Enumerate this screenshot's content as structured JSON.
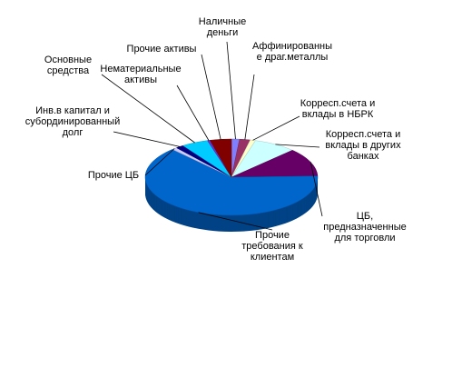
{
  "chart_data": {
    "type": "pie3d",
    "categories": [
      "Наличные деньги",
      "Аффинированные драг.металлы",
      "Корресп.счета и вклады в НБРК",
      "Корресп.счета и вклады в других банках",
      "ЦБ, предназначенные для торговли",
      "Прочие требования к клиентам",
      "Прочие ЦБ",
      "Инв.в капитал и субординированный долг",
      "Основные средства",
      "Нематериальные активы",
      "Прочие активы"
    ],
    "values": [
      1.5,
      2,
      1,
      8,
      12,
      63.5,
      1,
      1.5,
      5,
      0.5,
      4
    ],
    "colors": [
      "#8080ff",
      "#993366",
      "#ffffcc",
      "#ccffff",
      "#660066",
      "#0066cc",
      "#ccccff",
      "#000080",
      "#00ccff",
      "#6633cc",
      "#800000"
    ]
  }
}
